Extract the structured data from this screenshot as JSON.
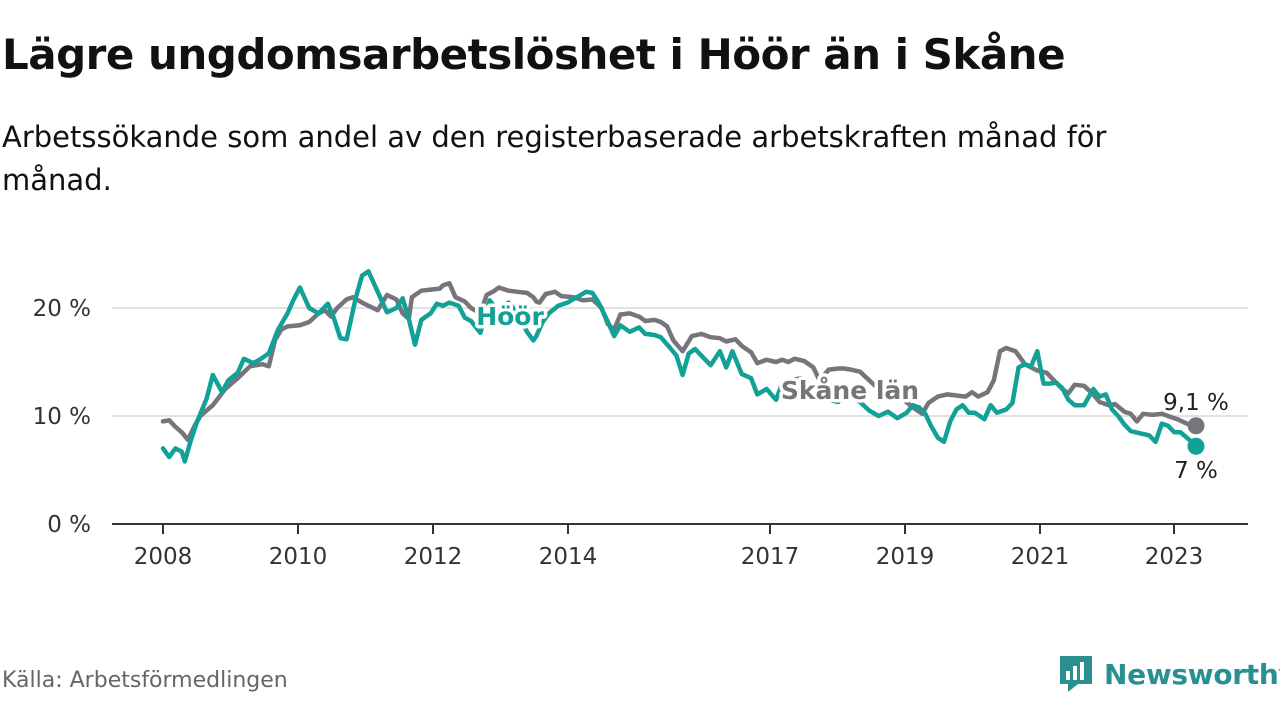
{
  "title": "Lägre ungdomsarbetslöshet i Höör än i Skåne",
  "subtitle": "Arbetssökande som andel av den registerbaserade arbetskraften månad för månad.",
  "source": "Källa: Arbetsförmedlingen",
  "brand": "Newsworthy",
  "colors": {
    "hoor": "#12a196",
    "skane": "#77757a",
    "grid": "#d9d9d9",
    "axis": "#333333",
    "brand": "#2a8f8f"
  },
  "chart_data": {
    "type": "line",
    "title": "Lägre ungdomsarbetslöshet i Höör än i Skåne",
    "xlabel": "",
    "ylabel": "",
    "ylim": [
      0,
      25
    ],
    "xlim": [
      2008.0,
      2023.67
    ],
    "y_ticks": [
      0,
      10,
      20
    ],
    "y_tick_labels": [
      "0 %",
      "10 %",
      "20 %"
    ],
    "x_ticks": [
      2008,
      2010,
      2012,
      2014,
      2017,
      2019,
      2021,
      2023
    ],
    "x_tick_labels": [
      "2008",
      "2010",
      "2012",
      "2014",
      "2017",
      "2019",
      "2021",
      "2023"
    ],
    "grid": true,
    "series": [
      {
        "name": "Skåne län",
        "color": "#77757a",
        "end_label": "9,1 %",
        "label_at": 2017.5,
        "points": [
          [
            2008.0,
            9.5
          ],
          [
            2008.1,
            9.6
          ],
          [
            2008.2,
            9.0
          ],
          [
            2008.3,
            8.5
          ],
          [
            2008.4,
            7.8
          ],
          [
            2008.5,
            9.0
          ],
          [
            2008.6,
            10.0
          ],
          [
            2008.8,
            11.0
          ],
          [
            2009.0,
            12.5
          ],
          [
            2009.2,
            13.5
          ],
          [
            2009.4,
            14.6
          ],
          [
            2009.6,
            14.8
          ],
          [
            2009.7,
            14.6
          ],
          [
            2009.8,
            17.0
          ],
          [
            2009.9,
            18.0
          ],
          [
            2010.0,
            18.3
          ],
          [
            2010.2,
            18.4
          ],
          [
            2010.35,
            18.7
          ],
          [
            2010.5,
            19.5
          ],
          [
            2010.6,
            19.8
          ],
          [
            2010.7,
            19.2
          ],
          [
            2010.8,
            20.0
          ],
          [
            2010.95,
            20.8
          ],
          [
            2011.05,
            21.0
          ],
          [
            2011.2,
            20.5
          ],
          [
            2011.3,
            20.2
          ],
          [
            2011.45,
            19.8
          ],
          [
            2011.6,
            21.2
          ],
          [
            2011.75,
            20.8
          ],
          [
            2011.85,
            19.5
          ],
          [
            2011.95,
            19.0
          ],
          [
            2012.0,
            21.0
          ],
          [
            2012.15,
            21.6
          ],
          [
            2012.3,
            21.7
          ],
          [
            2012.45,
            21.8
          ],
          [
            2012.5,
            22.1
          ],
          [
            2012.6,
            22.3
          ],
          [
            2012.7,
            21.0
          ],
          [
            2012.85,
            20.6
          ],
          [
            2012.95,
            20.0
          ],
          [
            2013.1,
            19.5
          ],
          [
            2013.2,
            21.2
          ],
          [
            2013.3,
            21.5
          ],
          [
            2013.4,
            21.9
          ],
          [
            2013.55,
            21.6
          ],
          [
            2013.7,
            21.5
          ],
          [
            2013.85,
            21.4
          ],
          [
            2013.95,
            21.0
          ],
          [
            2014.0,
            20.6
          ],
          [
            2014.05,
            20.5
          ],
          [
            2014.15,
            21.3
          ],
          [
            2014.3,
            21.5
          ],
          [
            2014.4,
            21.1
          ],
          [
            2014.6,
            21.0
          ],
          [
            2014.75,
            20.7
          ],
          [
            2014.9,
            20.8
          ],
          [
            2015.05,
            20.0
          ],
          [
            2015.15,
            18.5
          ],
          [
            2015.25,
            18.0
          ],
          [
            2015.35,
            19.4
          ],
          [
            2015.5,
            19.5
          ],
          [
            2015.65,
            19.2
          ],
          [
            2015.75,
            18.8
          ],
          [
            2015.9,
            18.9
          ],
          [
            2016.0,
            18.7
          ],
          [
            2016.1,
            18.3
          ],
          [
            2016.2,
            17.0
          ],
          [
            2016.35,
            16.0
          ],
          [
            2016.5,
            17.4
          ],
          [
            2016.65,
            17.6
          ],
          [
            2016.8,
            17.3
          ],
          [
            2016.95,
            17.2
          ],
          [
            2017.05,
            16.9
          ],
          [
            2017.2,
            17.1
          ],
          [
            2017.3,
            16.5
          ],
          [
            2017.45,
            15.9
          ],
          [
            2017.55,
            14.9
          ],
          [
            2017.7,
            15.2
          ],
          [
            2017.85,
            15.0
          ],
          [
            2017.95,
            15.2
          ],
          [
            2018.05,
            15.0
          ],
          [
            2018.15,
            15.3
          ],
          [
            2018.3,
            15.1
          ],
          [
            2018.45,
            14.5
          ],
          [
            2018.55,
            13.3
          ],
          [
            2018.7,
            14.3
          ],
          [
            2018.85,
            14.4
          ],
          [
            2018.95,
            14.4
          ],
          [
            2019.05,
            14.3
          ],
          [
            2019.2,
            14.1
          ],
          [
            2019.35,
            13.3
          ],
          [
            2019.5,
            12.5
          ],
          [
            2019.65,
            12.3
          ],
          [
            2019.75,
            11.8
          ],
          [
            2019.9,
            11.5
          ],
          [
            2020.05,
            10.8
          ],
          [
            2020.2,
            10.2
          ],
          [
            2020.3,
            11.2
          ],
          [
            2020.45,
            11.8
          ],
          [
            2020.6,
            12.0
          ],
          [
            2020.75,
            11.9
          ],
          [
            2020.9,
            11.8
          ],
          [
            2021.0,
            12.2
          ],
          [
            2021.1,
            11.8
          ],
          [
            2021.25,
            12.2
          ],
          [
            2021.35,
            13.3
          ],
          [
            2021.45,
            16.0
          ],
          [
            2021.55,
            16.3
          ],
          [
            2021.7,
            16.0
          ],
          [
            2021.85,
            14.8
          ],
          [
            2021.95,
            14.5
          ],
          [
            2022.05,
            14.2
          ],
          [
            2022.2,
            14.0
          ],
          [
            2022.3,
            13.4
          ],
          [
            2022.45,
            12.5
          ],
          [
            2022.55,
            12.1
          ],
          [
            2022.65,
            12.9
          ],
          [
            2022.8,
            12.8
          ],
          [
            2022.95,
            12.0
          ],
          [
            2023.05,
            11.3
          ],
          [
            2023.2,
            11.0
          ],
          [
            2023.3,
            11.1
          ],
          [
            2023.45,
            10.4
          ],
          [
            2023.55,
            10.2
          ],
          [
            2023.65,
            9.5
          ],
          [
            2023.75,
            10.2
          ],
          [
            2023.9,
            10.1
          ],
          [
            2024.05,
            10.2
          ],
          [
            2024.2,
            9.9
          ],
          [
            2024.3,
            9.7
          ],
          [
            2024.45,
            9.3
          ],
          [
            2024.6,
            9.1
          ]
        ]
      },
      {
        "name": "Höör",
        "color": "#12a196",
        "end_label": "7 %",
        "label_at": 2012.6,
        "points": [
          [
            2008.0,
            7.0
          ],
          [
            2008.1,
            6.2
          ],
          [
            2008.2,
            7.0
          ],
          [
            2008.3,
            6.7
          ],
          [
            2008.35,
            5.8
          ],
          [
            2008.45,
            7.8
          ],
          [
            2008.55,
            9.5
          ],
          [
            2008.7,
            11.6
          ],
          [
            2008.8,
            13.8
          ],
          [
            2008.95,
            12.2
          ],
          [
            2009.05,
            13.3
          ],
          [
            2009.2,
            14.0
          ],
          [
            2009.3,
            15.3
          ],
          [
            2009.45,
            14.9
          ],
          [
            2009.55,
            15.2
          ],
          [
            2009.7,
            15.8
          ],
          [
            2009.85,
            18.0
          ],
          [
            2010.0,
            19.5
          ],
          [
            2010.1,
            20.8
          ],
          [
            2010.2,
            21.9
          ],
          [
            2010.35,
            20.0
          ],
          [
            2010.5,
            19.5
          ],
          [
            2010.65,
            20.4
          ],
          [
            2010.75,
            19.0
          ],
          [
            2010.85,
            17.2
          ],
          [
            2010.95,
            17.1
          ],
          [
            2011.1,
            21.0
          ],
          [
            2011.2,
            23.0
          ],
          [
            2011.3,
            23.4
          ],
          [
            2011.45,
            21.5
          ],
          [
            2011.6,
            19.6
          ],
          [
            2011.75,
            20.0
          ],
          [
            2011.85,
            20.9
          ],
          [
            2011.95,
            19.0
          ],
          [
            2012.05,
            16.6
          ],
          [
            2012.15,
            18.9
          ],
          [
            2012.3,
            19.5
          ],
          [
            2012.4,
            20.4
          ],
          [
            2012.5,
            20.2
          ],
          [
            2012.6,
            20.5
          ],
          [
            2012.75,
            20.2
          ],
          [
            2012.85,
            19.1
          ],
          [
            2012.95,
            18.8
          ],
          [
            2013.1,
            17.7
          ],
          [
            2013.25,
            20.7
          ],
          [
            2013.4,
            19.6
          ],
          [
            2013.55,
            20.5
          ],
          [
            2013.7,
            19.5
          ],
          [
            2013.85,
            17.8
          ],
          [
            2013.95,
            17.0
          ],
          [
            2014.0,
            17.4
          ],
          [
            2014.1,
            18.7
          ],
          [
            2014.2,
            19.5
          ],
          [
            2014.35,
            20.2
          ],
          [
            2014.5,
            20.5
          ],
          [
            2014.65,
            21.0
          ],
          [
            2014.8,
            21.5
          ],
          [
            2014.9,
            21.4
          ],
          [
            2015.0,
            20.5
          ],
          [
            2015.15,
            18.7
          ],
          [
            2015.25,
            17.4
          ],
          [
            2015.35,
            18.4
          ],
          [
            2015.5,
            17.8
          ],
          [
            2015.65,
            18.2
          ],
          [
            2015.75,
            17.6
          ],
          [
            2015.9,
            17.5
          ],
          [
            2016.0,
            17.3
          ],
          [
            2016.15,
            16.3
          ],
          [
            2016.25,
            15.6
          ],
          [
            2016.35,
            13.8
          ],
          [
            2016.45,
            15.8
          ],
          [
            2016.55,
            16.2
          ],
          [
            2016.7,
            15.3
          ],
          [
            2016.8,
            14.7
          ],
          [
            2016.95,
            16.0
          ],
          [
            2017.05,
            14.5
          ],
          [
            2017.15,
            16.0
          ],
          [
            2017.3,
            13.9
          ],
          [
            2017.45,
            13.5
          ],
          [
            2017.55,
            12.0
          ],
          [
            2017.7,
            12.5
          ],
          [
            2017.85,
            11.5
          ],
          [
            2017.95,
            13.0
          ],
          [
            2018.1,
            13.3
          ],
          [
            2018.25,
            13.5
          ],
          [
            2018.4,
            12.8
          ],
          [
            2018.55,
            12.0
          ],
          [
            2018.7,
            11.5
          ],
          [
            2018.85,
            11.3
          ],
          [
            2018.95,
            12.5
          ],
          [
            2019.05,
            11.8
          ],
          [
            2019.2,
            11.3
          ],
          [
            2019.35,
            10.5
          ],
          [
            2019.5,
            10.0
          ],
          [
            2019.65,
            10.4
          ],
          [
            2019.8,
            9.8
          ],
          [
            2019.95,
            10.3
          ],
          [
            2020.05,
            11.0
          ],
          [
            2020.15,
            10.8
          ],
          [
            2020.25,
            10.2
          ],
          [
            2020.35,
            9.0
          ],
          [
            2020.45,
            8.0
          ],
          [
            2020.55,
            7.6
          ],
          [
            2020.65,
            9.5
          ],
          [
            2020.75,
            10.6
          ],
          [
            2020.85,
            11.0
          ],
          [
            2020.95,
            10.3
          ],
          [
            2021.05,
            10.3
          ],
          [
            2021.2,
            9.7
          ],
          [
            2021.3,
            11.0
          ],
          [
            2021.4,
            10.3
          ],
          [
            2021.55,
            10.6
          ],
          [
            2021.65,
            11.2
          ],
          [
            2021.75,
            14.5
          ],
          [
            2021.85,
            14.8
          ],
          [
            2021.95,
            14.6
          ],
          [
            2022.05,
            16.0
          ],
          [
            2022.15,
            13.0
          ],
          [
            2022.25,
            13.0
          ],
          [
            2022.35,
            13.1
          ],
          [
            2022.45,
            12.6
          ],
          [
            2022.55,
            11.5
          ],
          [
            2022.65,
            11.0
          ],
          [
            2022.8,
            11.0
          ],
          [
            2022.95,
            12.5
          ],
          [
            2023.05,
            11.8
          ],
          [
            2023.15,
            12.0
          ],
          [
            2023.25,
            10.6
          ],
          [
            2023.35,
            10.0
          ],
          [
            2023.45,
            9.2
          ],
          [
            2023.55,
            8.6
          ],
          [
            2023.7,
            8.4
          ],
          [
            2023.85,
            8.2
          ],
          [
            2023.95,
            7.6
          ],
          [
            2024.05,
            9.3
          ],
          [
            2024.15,
            9.1
          ],
          [
            2024.25,
            8.5
          ],
          [
            2024.35,
            8.5
          ],
          [
            2024.45,
            8.0
          ],
          [
            2024.55,
            7.5
          ],
          [
            2024.6,
            7.2
          ]
        ]
      }
    ]
  }
}
